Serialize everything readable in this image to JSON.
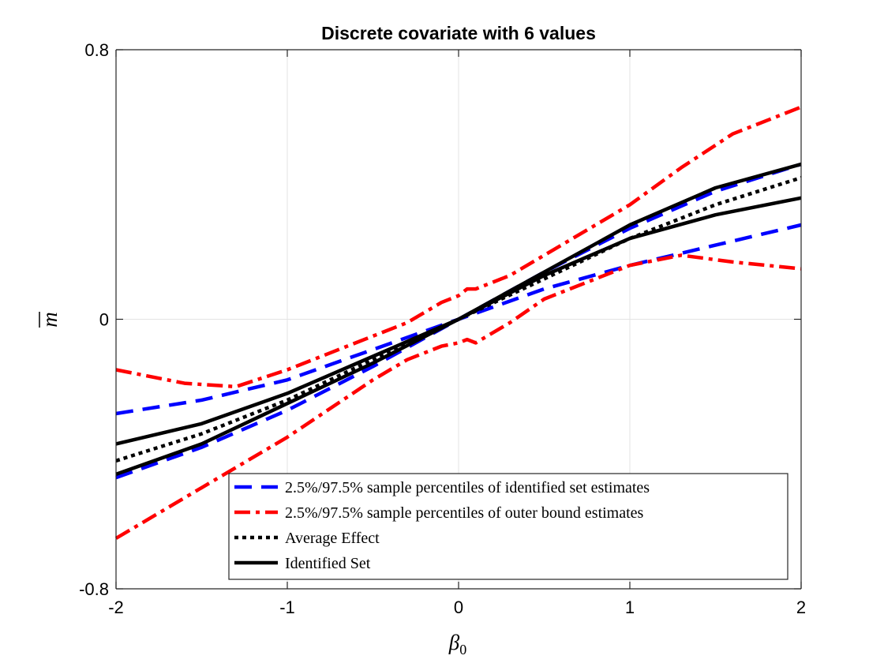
{
  "chart_data": {
    "type": "line",
    "title": "Discrete covariate with 6 values",
    "xlabel": "β",
    "xlabel_sub": "0",
    "ylabel": "m",
    "xlim": [
      -2,
      2
    ],
    "ylim": [
      -0.8,
      0.8
    ],
    "xticks": [
      -2,
      -1,
      0,
      1,
      2
    ],
    "xtick_labels": [
      "-2",
      "-1",
      "0",
      "1",
      "2"
    ],
    "yticks": [
      -0.8,
      0,
      0.8
    ],
    "ytick_labels": [
      "-0.8",
      "0",
      "0.8"
    ],
    "grid": true,
    "legend_position": "bottom-right",
    "legend": [
      "2.5%/97.5% sample percentiles of identified set estimates",
      "2.5%/97.5% sample percentiles of outer bound estimates",
      "Average Effect",
      "Identified Set"
    ],
    "series": [
      {
        "name": "identified-set-percentile-upper",
        "legend_index": 0,
        "style": "dashed",
        "color": "#0000ff",
        "points": [
          [
            -2,
            -0.28
          ],
          [
            -1.5,
            -0.24
          ],
          [
            -1.0,
            -0.18
          ],
          [
            -0.5,
            -0.09
          ],
          [
            0,
            0
          ],
          [
            0.5,
            0.09
          ],
          [
            1.0,
            0.16
          ],
          [
            1.5,
            0.22
          ],
          [
            2,
            0.28
          ]
        ]
      },
      {
        "name": "identified-set-percentile-lower",
        "legend_index": 0,
        "style": "dashed",
        "color": "#0000ff",
        "points": [
          [
            -2,
            -0.47
          ],
          [
            -1.5,
            -0.38
          ],
          [
            -1.0,
            -0.27
          ],
          [
            -0.5,
            -0.14
          ],
          [
            0,
            0
          ],
          [
            0.5,
            0.14
          ],
          [
            1.0,
            0.27
          ],
          [
            1.5,
            0.38
          ],
          [
            2,
            0.46
          ]
        ]
      },
      {
        "name": "outer-bound-percentile-upper",
        "legend_index": 1,
        "style": "dashdot",
        "color": "#ff0000",
        "points": [
          [
            -2,
            -0.15
          ],
          [
            -1.6,
            -0.19
          ],
          [
            -1.3,
            -0.2
          ],
          [
            -1.0,
            -0.15
          ],
          [
            -0.5,
            -0.05
          ],
          [
            -0.3,
            -0.01
          ],
          [
            -0.2,
            0.02
          ],
          [
            -0.1,
            0.05
          ],
          [
            0,
            0.07
          ],
          [
            0.05,
            0.09
          ],
          [
            0.1,
            0.09
          ],
          [
            0.3,
            0.13
          ],
          [
            0.5,
            0.19
          ],
          [
            1.0,
            0.34
          ],
          [
            1.3,
            0.45
          ],
          [
            1.6,
            0.55
          ],
          [
            2,
            0.63
          ]
        ]
      },
      {
        "name": "outer-bound-percentile-lower",
        "legend_index": 1,
        "style": "dashdot",
        "color": "#ff0000",
        "points": [
          [
            -2,
            -0.65
          ],
          [
            -1.5,
            -0.5
          ],
          [
            -1.0,
            -0.35
          ],
          [
            -0.5,
            -0.18
          ],
          [
            -0.3,
            -0.12
          ],
          [
            -0.2,
            -0.1
          ],
          [
            -0.1,
            -0.08
          ],
          [
            0,
            -0.07
          ],
          [
            0.05,
            -0.06
          ],
          [
            0.1,
            -0.07
          ],
          [
            0.3,
            -0.01
          ],
          [
            0.5,
            0.06
          ],
          [
            1.0,
            0.16
          ],
          [
            1.3,
            0.19
          ],
          [
            1.6,
            0.17
          ],
          [
            2,
            0.15
          ]
        ]
      },
      {
        "name": "average-effect",
        "legend_index": 2,
        "style": "dotted",
        "color": "#000000",
        "points": [
          [
            -2,
            -0.42
          ],
          [
            -1.5,
            -0.34
          ],
          [
            -1.0,
            -0.24
          ],
          [
            -0.5,
            -0.12
          ],
          [
            0,
            0
          ],
          [
            0.5,
            0.12
          ],
          [
            1.0,
            0.24
          ],
          [
            1.5,
            0.34
          ],
          [
            2,
            0.42
          ]
        ]
      },
      {
        "name": "identified-set-upper",
        "legend_index": 3,
        "style": "solid",
        "color": "#000000",
        "points": [
          [
            -2,
            -0.37
          ],
          [
            -1.5,
            -0.31
          ],
          [
            -1.0,
            -0.22
          ],
          [
            -0.5,
            -0.11
          ],
          [
            0,
            0
          ],
          [
            0.5,
            0.13
          ],
          [
            1.0,
            0.24
          ],
          [
            1.5,
            0.31
          ],
          [
            2,
            0.36
          ]
        ]
      },
      {
        "name": "identified-set-lower",
        "legend_index": 3,
        "style": "solid",
        "color": "#000000",
        "points": [
          [
            -2,
            -0.46
          ],
          [
            -1.5,
            -0.37
          ],
          [
            -1.0,
            -0.25
          ],
          [
            -0.5,
            -0.13
          ],
          [
            0,
            0
          ],
          [
            0.5,
            0.14
          ],
          [
            1.0,
            0.28
          ],
          [
            1.5,
            0.39
          ],
          [
            2,
            0.46
          ]
        ]
      }
    ]
  }
}
